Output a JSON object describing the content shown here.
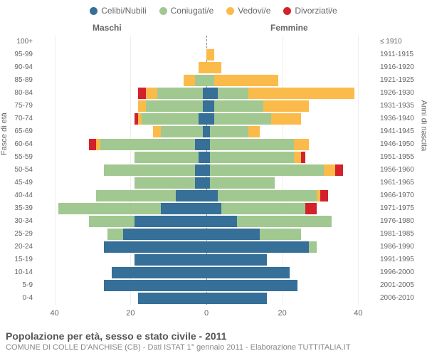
{
  "legend": [
    {
      "label": "Celibi/Nubili",
      "color": "#366f98"
    },
    {
      "label": "Coniugati/e",
      "color": "#a1c891"
    },
    {
      "label": "Vedovi/e",
      "color": "#fbbb4b"
    },
    {
      "label": "Divorziati/e",
      "color": "#d3222b"
    }
  ],
  "columns": {
    "left": "Maschi",
    "right": "Femmine"
  },
  "axis_titles": {
    "left": "Fasce di età",
    "right": "Anni di nascita"
  },
  "x_ticks": [
    40,
    20,
    0,
    20,
    40
  ],
  "x_max": 45,
  "colors": {
    "celibi": "#366f98",
    "coniugati": "#a1c891",
    "vedovi": "#fbbb4b",
    "divorziati": "#d3222b",
    "grid": "#eeeeee",
    "center": "#888888",
    "bg": "#ffffff",
    "text": "#666666"
  },
  "rows": [
    {
      "age": "100+",
      "birth": "≤ 1910",
      "m": {
        "c": 0,
        "g": 0,
        "v": 0,
        "d": 0
      },
      "f": {
        "c": 0,
        "g": 0,
        "v": 0,
        "d": 0
      }
    },
    {
      "age": "95-99",
      "birth": "1911-1915",
      "m": {
        "c": 0,
        "g": 0,
        "v": 0,
        "d": 0
      },
      "f": {
        "c": 0,
        "g": 0,
        "v": 2,
        "d": 0
      }
    },
    {
      "age": "90-94",
      "birth": "1916-1920",
      "m": {
        "c": 0,
        "g": 0,
        "v": 2,
        "d": 0
      },
      "f": {
        "c": 0,
        "g": 0,
        "v": 4,
        "d": 0
      }
    },
    {
      "age": "85-89",
      "birth": "1921-1925",
      "m": {
        "c": 0,
        "g": 3,
        "v": 3,
        "d": 0
      },
      "f": {
        "c": 0,
        "g": 2,
        "v": 17,
        "d": 0
      }
    },
    {
      "age": "80-84",
      "birth": "1926-1930",
      "m": {
        "c": 1,
        "g": 12,
        "v": 3,
        "d": 2
      },
      "f": {
        "c": 3,
        "g": 8,
        "v": 28,
        "d": 0
      }
    },
    {
      "age": "75-79",
      "birth": "1931-1935",
      "m": {
        "c": 1,
        "g": 15,
        "v": 2,
        "d": 0
      },
      "f": {
        "c": 2,
        "g": 13,
        "v": 12,
        "d": 0
      }
    },
    {
      "age": "70-74",
      "birth": "1936-1940",
      "m": {
        "c": 2,
        "g": 15,
        "v": 1,
        "d": 1
      },
      "f": {
        "c": 2,
        "g": 15,
        "v": 8,
        "d": 0
      }
    },
    {
      "age": "65-69",
      "birth": "1941-1945",
      "m": {
        "c": 1,
        "g": 11,
        "v": 2,
        "d": 0
      },
      "f": {
        "c": 1,
        "g": 10,
        "v": 3,
        "d": 0
      }
    },
    {
      "age": "60-64",
      "birth": "1946-1950",
      "m": {
        "c": 3,
        "g": 25,
        "v": 1,
        "d": 2
      },
      "f": {
        "c": 1,
        "g": 22,
        "v": 4,
        "d": 0
      }
    },
    {
      "age": "55-59",
      "birth": "1951-1955",
      "m": {
        "c": 2,
        "g": 17,
        "v": 0,
        "d": 0
      },
      "f": {
        "c": 1,
        "g": 22,
        "v": 2,
        "d": 1
      }
    },
    {
      "age": "50-54",
      "birth": "1956-1960",
      "m": {
        "c": 3,
        "g": 24,
        "v": 0,
        "d": 0
      },
      "f": {
        "c": 1,
        "g": 30,
        "v": 3,
        "d": 2
      }
    },
    {
      "age": "45-49",
      "birth": "1961-1965",
      "m": {
        "c": 3,
        "g": 16,
        "v": 0,
        "d": 0
      },
      "f": {
        "c": 1,
        "g": 17,
        "v": 0,
        "d": 0
      }
    },
    {
      "age": "40-44",
      "birth": "1966-1970",
      "m": {
        "c": 8,
        "g": 21,
        "v": 0,
        "d": 0
      },
      "f": {
        "c": 3,
        "g": 26,
        "v": 1,
        "d": 2
      }
    },
    {
      "age": "35-39",
      "birth": "1971-1975",
      "m": {
        "c": 12,
        "g": 27,
        "v": 0,
        "d": 0
      },
      "f": {
        "c": 4,
        "g": 22,
        "v": 0,
        "d": 3
      }
    },
    {
      "age": "30-34",
      "birth": "1976-1980",
      "m": {
        "c": 19,
        "g": 12,
        "v": 0,
        "d": 0
      },
      "f": {
        "c": 8,
        "g": 25,
        "v": 0,
        "d": 0
      }
    },
    {
      "age": "25-29",
      "birth": "1981-1985",
      "m": {
        "c": 22,
        "g": 4,
        "v": 0,
        "d": 0
      },
      "f": {
        "c": 14,
        "g": 11,
        "v": 0,
        "d": 0
      }
    },
    {
      "age": "20-24",
      "birth": "1986-1990",
      "m": {
        "c": 27,
        "g": 0,
        "v": 0,
        "d": 0
      },
      "f": {
        "c": 27,
        "g": 2,
        "v": 0,
        "d": 0
      }
    },
    {
      "age": "15-19",
      "birth": "1991-1995",
      "m": {
        "c": 19,
        "g": 0,
        "v": 0,
        "d": 0
      },
      "f": {
        "c": 16,
        "g": 0,
        "v": 0,
        "d": 0
      }
    },
    {
      "age": "10-14",
      "birth": "1996-2000",
      "m": {
        "c": 25,
        "g": 0,
        "v": 0,
        "d": 0
      },
      "f": {
        "c": 22,
        "g": 0,
        "v": 0,
        "d": 0
      }
    },
    {
      "age": "5-9",
      "birth": "2001-2005",
      "m": {
        "c": 27,
        "g": 0,
        "v": 0,
        "d": 0
      },
      "f": {
        "c": 24,
        "g": 0,
        "v": 0,
        "d": 0
      }
    },
    {
      "age": "0-4",
      "birth": "2006-2010",
      "m": {
        "c": 18,
        "g": 0,
        "v": 0,
        "d": 0
      },
      "f": {
        "c": 16,
        "g": 0,
        "v": 0,
        "d": 0
      }
    }
  ],
  "title": "Popolazione per età, sesso e stato civile - 2011",
  "subtitle": "COMUNE DI COLLE D'ANCHISE (CB) - Dati ISTAT 1° gennaio 2011 - Elaborazione TUTTITALIA.IT"
}
